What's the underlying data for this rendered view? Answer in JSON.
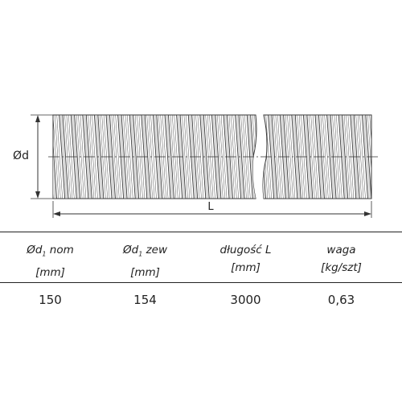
{
  "drawing": {
    "diameter_label": "Ød",
    "length_label": "L"
  },
  "table": {
    "headers": [
      {
        "pre": "Ød",
        "sub": "1",
        "post": " nom",
        "unit": "[mm]"
      },
      {
        "pre": "Ød",
        "sub": "1",
        "post": " zew",
        "unit": "[mm]"
      },
      {
        "pre": "długość L",
        "sub": "",
        "post": "",
        "unit": "[mm]"
      },
      {
        "pre": "waga",
        "sub": "",
        "post": "",
        "unit": "[kg/szt]"
      }
    ],
    "values": [
      "150",
      "154",
      "3000",
      "0,63"
    ]
  }
}
